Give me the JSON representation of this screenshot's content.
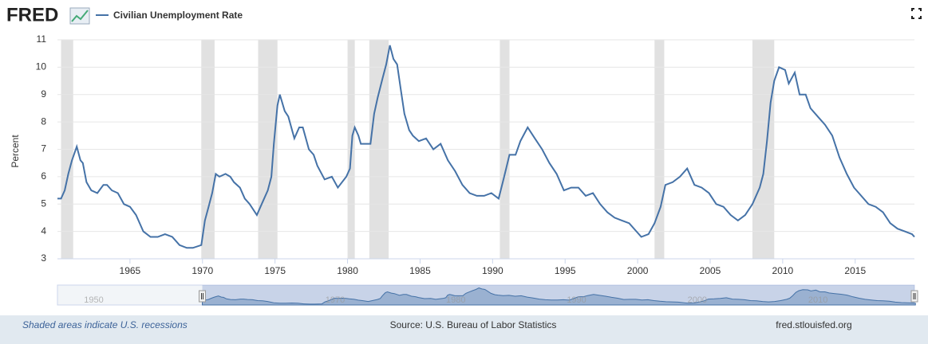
{
  "brand": "FRED",
  "chart_data": {
    "type": "line",
    "title": "Civilian Unemployment Rate",
    "y_label": "Percent",
    "series": [
      {
        "name": "Civilian Unemployment Rate",
        "color": "#4572a7",
        "x": [
          "1960-01",
          "1960-04",
          "1960-07",
          "1960-10",
          "1961-01",
          "1961-05",
          "1961-08",
          "1961-10",
          "1962-01",
          "1962-05",
          "1962-10",
          "1963-03",
          "1963-06",
          "1963-10",
          "1964-03",
          "1964-08",
          "1965-01",
          "1965-06",
          "1965-12",
          "1966-06",
          "1966-12",
          "1967-06",
          "1967-12",
          "1968-06",
          "1968-12",
          "1969-05",
          "1969-12",
          "1970-03",
          "1970-06",
          "1970-09",
          "1970-12",
          "1971-03",
          "1971-08",
          "1971-12",
          "1972-03",
          "1972-08",
          "1972-12",
          "1973-04",
          "1973-10",
          "1974-03",
          "1974-07",
          "1974-10",
          "1974-12",
          "1975-03",
          "1975-05",
          "1975-09",
          "1975-12",
          "1976-05",
          "1976-09",
          "1976-12",
          "1977-05",
          "1977-09",
          "1977-12",
          "1978-06",
          "1978-12",
          "1979-05",
          "1979-12",
          "1980-03",
          "1980-05",
          "1980-07",
          "1980-10",
          "1980-12",
          "1981-04",
          "1981-08",
          "1981-11",
          "1982-02",
          "1982-06",
          "1982-09",
          "1982-12",
          "1983-03",
          "1983-06",
          "1983-09",
          "1983-12",
          "1984-04",
          "1984-07",
          "1984-12",
          "1985-06",
          "1985-12",
          "1986-06",
          "1986-12",
          "1987-06",
          "1987-12",
          "1988-06",
          "1988-12",
          "1989-06",
          "1989-12",
          "1990-06",
          "1990-10",
          "1991-03",
          "1991-08",
          "1991-12",
          "1992-06",
          "1992-12",
          "1993-06",
          "1993-12",
          "1994-06",
          "1994-12",
          "1995-06",
          "1995-12",
          "1996-06",
          "1996-12",
          "1997-06",
          "1997-12",
          "1998-06",
          "1998-12",
          "1999-06",
          "1999-12",
          "2000-04",
          "2000-10",
          "2001-03",
          "2001-08",
          "2001-12",
          "2002-06",
          "2002-12",
          "2003-06",
          "2003-12",
          "2004-06",
          "2004-12",
          "2005-06",
          "2005-12",
          "2006-06",
          "2006-12",
          "2007-06",
          "2007-12",
          "2008-06",
          "2008-09",
          "2008-12",
          "2009-03",
          "2009-06",
          "2009-10",
          "2010-03",
          "2010-06",
          "2010-11",
          "2011-03",
          "2011-08",
          "2011-12",
          "2012-06",
          "2012-12",
          "2013-06",
          "2013-12",
          "2014-06",
          "2014-12",
          "2015-06",
          "2015-12",
          "2016-06",
          "2016-12",
          "2017-06",
          "2017-12",
          "2018-06",
          "2018-12",
          "2019-02"
        ],
        "values": [
          5.2,
          5.2,
          5.5,
          6.1,
          6.6,
          7.1,
          6.6,
          6.5,
          5.8,
          5.5,
          5.4,
          5.7,
          5.7,
          5.5,
          5.4,
          5.0,
          4.9,
          4.6,
          4.0,
          3.8,
          3.8,
          3.9,
          3.8,
          3.5,
          3.4,
          3.4,
          3.5,
          4.4,
          4.9,
          5.4,
          6.1,
          6.0,
          6.1,
          6.0,
          5.8,
          5.6,
          5.2,
          5.0,
          4.6,
          5.1,
          5.5,
          6.0,
          7.2,
          8.6,
          9.0,
          8.4,
          8.2,
          7.4,
          7.8,
          7.8,
          7.0,
          6.8,
          6.4,
          5.9,
          6.0,
          5.6,
          6.0,
          6.3,
          7.5,
          7.8,
          7.5,
          7.2,
          7.2,
          7.2,
          8.3,
          8.9,
          9.6,
          10.1,
          10.8,
          10.3,
          10.1,
          9.2,
          8.3,
          7.7,
          7.5,
          7.3,
          7.4,
          7.0,
          7.2,
          6.6,
          6.2,
          5.7,
          5.4,
          5.3,
          5.3,
          5.4,
          5.2,
          5.9,
          6.8,
          6.8,
          7.3,
          7.8,
          7.4,
          7.0,
          6.5,
          6.1,
          5.5,
          5.6,
          5.6,
          5.3,
          5.4,
          5.0,
          4.7,
          4.5,
          4.4,
          4.3,
          4.0,
          3.8,
          3.9,
          4.3,
          4.9,
          5.7,
          5.8,
          6.0,
          6.3,
          5.7,
          5.6,
          5.4,
          5.0,
          4.9,
          4.6,
          4.4,
          4.6,
          5.0,
          5.6,
          6.1,
          7.3,
          8.7,
          9.5,
          10.0,
          9.9,
          9.4,
          9.8,
          9.0,
          9.0,
          8.5,
          8.2,
          7.9,
          7.5,
          6.7,
          6.1,
          5.6,
          5.3,
          5.0,
          4.9,
          4.7,
          4.3,
          4.1,
          4.0,
          3.9,
          3.8
        ]
      }
    ],
    "recessions": [
      [
        "1960-04",
        "1961-02"
      ],
      [
        "1969-12",
        "1970-11"
      ],
      [
        "1973-11",
        "1975-03"
      ],
      [
        "1980-01",
        "1980-07"
      ],
      [
        "1981-07",
        "1982-11"
      ],
      [
        "1990-07",
        "1991-03"
      ],
      [
        "2001-03",
        "2001-11"
      ],
      [
        "2007-12",
        "2009-06"
      ]
    ],
    "xlim": [
      "1960-01",
      "2019-02"
    ],
    "xticks": [
      1965,
      1970,
      1975,
      1980,
      1985,
      1990,
      1995,
      2000,
      2005,
      2010,
      2015
    ],
    "ylim": [
      3,
      11
    ],
    "yticks": [
      3,
      4,
      5,
      6,
      7,
      8,
      9,
      10,
      11
    ],
    "grid": true
  },
  "navigator": {
    "xlim": [
      1948,
      2019
    ],
    "labels": [
      1950,
      1970,
      1980,
      1990,
      2000,
      2010
    ]
  },
  "footer": {
    "note": "Shaded areas indicate U.S. recessions",
    "source": "Source: U.S. Bureau of Labor Statistics",
    "site": "fred.stlouisfed.org"
  }
}
